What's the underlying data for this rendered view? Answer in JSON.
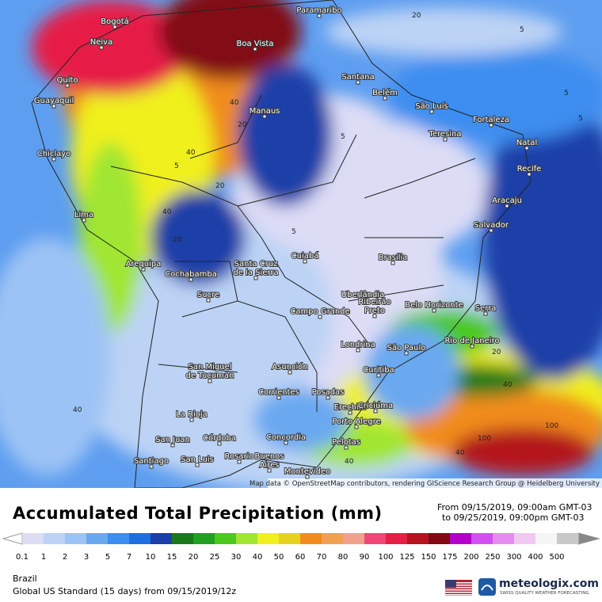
{
  "map": {
    "attribution": "Map data © OpenStreetMap contributors, rendering GIScience Research Group @ Heidelberg University",
    "cities": [
      [
        "Paramaribo"
      ],
      [
        "Bogotá"
      ],
      [
        "Neiva"
      ],
      [
        "Boa Vista"
      ],
      [
        "Quito"
      ],
      [
        "Santana"
      ],
      [
        "Belém"
      ],
      [
        "Guayaquil"
      ],
      [
        "São Luís"
      ],
      [
        "Manaus"
      ],
      [
        "Fortaleza"
      ],
      [
        "Teresina"
      ],
      [
        "Chiclayo"
      ],
      [
        "Natal"
      ],
      [
        "Recife"
      ],
      [
        "Aracaju"
      ],
      [
        "Lima"
      ],
      [
        "Salvador"
      ],
      [
        "Cuiabá"
      ],
      [
        "Brasília"
      ],
      [
        "Arequipa"
      ],
      [
        "Cochabamba"
      ],
      [
        "Santa Cruz",
        "de la Sierra"
      ],
      [
        "Sucre"
      ],
      [
        "Uberlândia"
      ],
      [
        "Belo Horizonte"
      ],
      [
        "Serra"
      ],
      [
        "Campo Grande"
      ],
      [
        "Ribeirão",
        "Preto"
      ],
      [
        "Rio de Janeiro"
      ],
      [
        "Londrina"
      ],
      [
        "São Paulo"
      ],
      [
        "Asunción"
      ],
      [
        "Curitiba"
      ],
      [
        "San Miguel",
        "de Tucumán"
      ],
      [
        "Corrientes"
      ],
      [
        "Posadas"
      ],
      [
        "Erechim"
      ],
      [
        "Criciúma"
      ],
      [
        "La Rioja"
      ],
      [
        "Porto Alegre"
      ],
      [
        "San Juan"
      ],
      [
        "Córdoba"
      ],
      [
        "Concordia"
      ],
      [
        "Pelotas"
      ],
      [
        "Santiago"
      ],
      [
        "San Luis"
      ],
      [
        "Rosario"
      ],
      [
        "Buenos",
        "Aires"
      ],
      [
        "Montevideo"
      ]
    ],
    "contour_labels": [
      "40",
      "20",
      "5",
      "40",
      "5",
      "20",
      "40",
      "5",
      "20",
      "40",
      "5",
      "20",
      "40",
      "40",
      "100",
      "100",
      "40",
      "5",
      "5",
      "20"
    ]
  },
  "title": "Accumulated Total Precipitation (mm)",
  "period": {
    "from": "From 09/15/2019, 09:00am GMT-03",
    "to": "to 09/25/2019, 09:00pm GMT-03"
  },
  "legend": {
    "labels": [
      0.1,
      1,
      2,
      3,
      5,
      7,
      10,
      15,
      20,
      25,
      30,
      40,
      50,
      60,
      70,
      80,
      90,
      100,
      125,
      150,
      175,
      200,
      250,
      300,
      400,
      500
    ],
    "colors": [
      "#dcdcf5",
      "#bcd3f5",
      "#9cc3f5",
      "#6aa9f0",
      "#3c8ef0",
      "#1e6fe0",
      "#1a3fa8",
      "#1a7a1a",
      "#22a022",
      "#4cc81e",
      "#a0e632",
      "#f0f01e",
      "#e6d21e",
      "#f08c1e",
      "#f0a050",
      "#f0a08c",
      "#f04678",
      "#e61e46",
      "#b4141e",
      "#820a14",
      "#b400c8",
      "#d250f0",
      "#e68cf0",
      "#f0c8f0",
      "#f5f5f5",
      "#c8c8c8"
    ]
  },
  "region": "Brazil",
  "model": "Global US Standard (15 days) from 09/15/2019/12z",
  "brand": {
    "name": "meteologix.com",
    "tagline": "SWISS QUALITY WEATHER FORECASTING"
  }
}
